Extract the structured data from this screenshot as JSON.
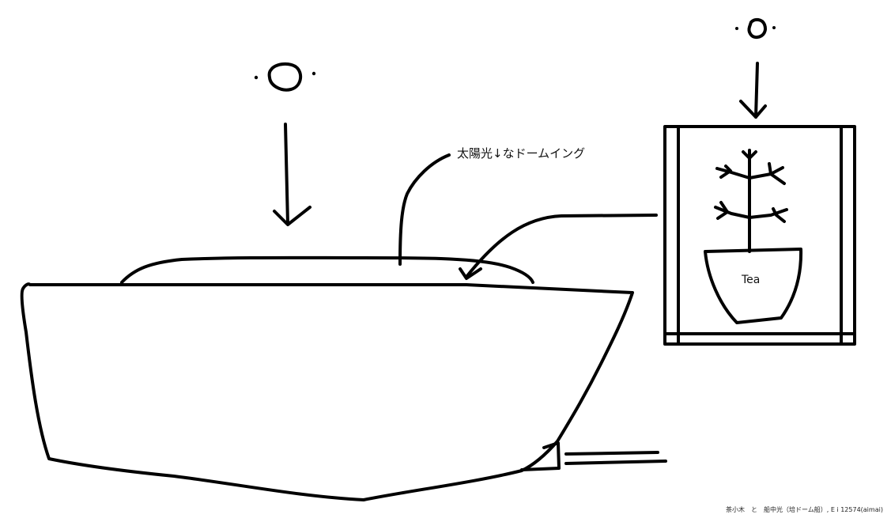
{
  "annotation": "太陽光↓なドームイング",
  "pot_label": "Tea",
  "caption": "茶小木　と　船中光（培ドーム船）, E i 12574(aimai)",
  "colors": {
    "ink": "#000000",
    "background": "#ffffff"
  },
  "icons": {
    "sun_left": "sun-icon",
    "sun_right": "sun-icon",
    "plant": "tree-icon"
  }
}
